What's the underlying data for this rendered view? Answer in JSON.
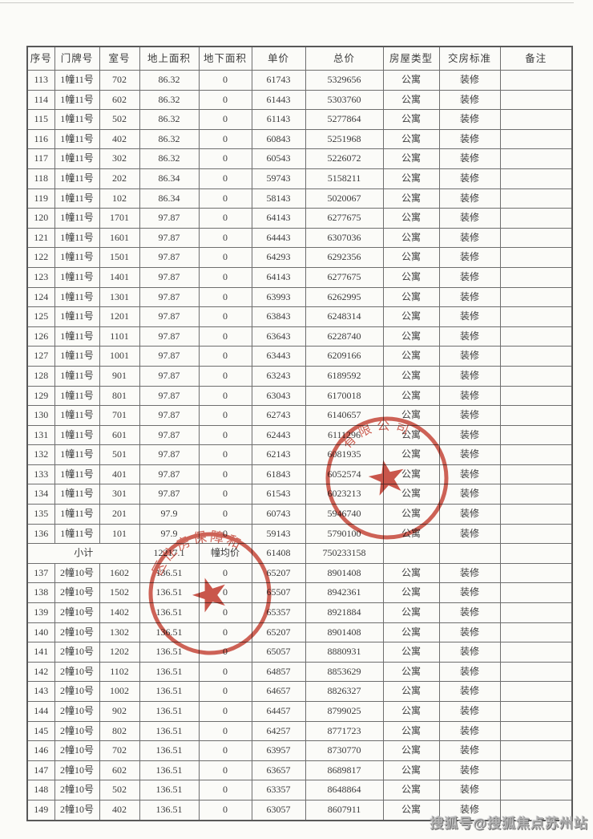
{
  "colors": {
    "paper": "#fbfbf8",
    "grid": "#6e6e6e",
    "text": "#3c3c3c",
    "stamp_red": "#c9473a",
    "watermark_gray": "#b3b3b3"
  },
  "table": {
    "columns": [
      "序号",
      "门牌号",
      "室号",
      "地上面积",
      "地下面积",
      "单价",
      "总价",
      "房屋类型",
      "交房标准",
      "备注"
    ],
    "rows": [
      [
        "113",
        "1幢11号",
        "702",
        "86.32",
        "0",
        "61743",
        "5329656",
        "公寓",
        "装修",
        ""
      ],
      [
        "114",
        "1幢11号",
        "602",
        "86.32",
        "0",
        "61443",
        "5303760",
        "公寓",
        "装修",
        ""
      ],
      [
        "115",
        "1幢11号",
        "502",
        "86.32",
        "0",
        "61143",
        "5277864",
        "公寓",
        "装修",
        ""
      ],
      [
        "116",
        "1幢11号",
        "402",
        "86.32",
        "0",
        "60843",
        "5251968",
        "公寓",
        "装修",
        ""
      ],
      [
        "117",
        "1幢11号",
        "302",
        "86.32",
        "0",
        "60543",
        "5226072",
        "公寓",
        "装修",
        ""
      ],
      [
        "118",
        "1幢11号",
        "202",
        "86.34",
        "0",
        "59743",
        "5158211",
        "公寓",
        "装修",
        ""
      ],
      [
        "119",
        "1幢11号",
        "102",
        "86.34",
        "0",
        "58143",
        "5020067",
        "公寓",
        "装修",
        ""
      ],
      [
        "120",
        "1幢11号",
        "1701",
        "97.87",
        "0",
        "64143",
        "6277675",
        "公寓",
        "装修",
        ""
      ],
      [
        "121",
        "1幢11号",
        "1601",
        "97.87",
        "0",
        "64443",
        "6307036",
        "公寓",
        "装修",
        ""
      ],
      [
        "122",
        "1幢11号",
        "1501",
        "97.87",
        "0",
        "64293",
        "6292356",
        "公寓",
        "装修",
        ""
      ],
      [
        "123",
        "1幢11号",
        "1401",
        "97.87",
        "0",
        "64143",
        "6277675",
        "公寓",
        "装修",
        ""
      ],
      [
        "124",
        "1幢11号",
        "1301",
        "97.87",
        "0",
        "63993",
        "6262995",
        "公寓",
        "装修",
        ""
      ],
      [
        "125",
        "1幢11号",
        "1201",
        "97.87",
        "0",
        "63843",
        "6248314",
        "公寓",
        "装修",
        ""
      ],
      [
        "126",
        "1幢11号",
        "1101",
        "97.87",
        "0",
        "63643",
        "6228740",
        "公寓",
        "装修",
        ""
      ],
      [
        "127",
        "1幢11号",
        "1001",
        "97.87",
        "0",
        "63443",
        "6209166",
        "公寓",
        "装修",
        ""
      ],
      [
        "128",
        "1幢11号",
        "901",
        "97.87",
        "0",
        "63243",
        "6189592",
        "公寓",
        "装修",
        ""
      ],
      [
        "129",
        "1幢11号",
        "801",
        "97.87",
        "0",
        "63043",
        "6170018",
        "公寓",
        "装修",
        ""
      ],
      [
        "130",
        "1幢11号",
        "701",
        "97.87",
        "0",
        "62743",
        "6140657",
        "公寓",
        "装修",
        ""
      ],
      [
        "131",
        "1幢11号",
        "601",
        "97.87",
        "0",
        "62443",
        "6111296",
        "公寓",
        "装修",
        ""
      ],
      [
        "132",
        "1幢11号",
        "501",
        "97.87",
        "0",
        "62143",
        "6081935",
        "公寓",
        "装修",
        ""
      ],
      [
        "133",
        "1幢11号",
        "401",
        "97.87",
        "0",
        "61843",
        "6052574",
        "公寓",
        "装修",
        ""
      ],
      [
        "134",
        "1幢11号",
        "301",
        "97.87",
        "0",
        "61543",
        "6023213",
        "公寓",
        "装修",
        ""
      ],
      [
        "135",
        "1幢11号",
        "201",
        "97.9",
        "0",
        "60743",
        "5946740",
        "公寓",
        "装修",
        ""
      ],
      [
        "136",
        "1幢11号",
        "101",
        "97.9",
        "0",
        "59143",
        "5790100",
        "公寓",
        "装修",
        ""
      ],
      {
        "subtotal": {
          "label": "小计",
          "area": "12217.1",
          "avg_label": "幢均价",
          "avg_price": "61408",
          "total": "750233158"
        }
      },
      [
        "137",
        "2幢10号",
        "1602",
        "136.51",
        "0",
        "65207",
        "8901408",
        "公寓",
        "装修",
        ""
      ],
      [
        "138",
        "2幢10号",
        "1502",
        "136.51",
        "0",
        "65507",
        "8942361",
        "公寓",
        "装修",
        ""
      ],
      [
        "139",
        "2幢10号",
        "1402",
        "136.51",
        "0",
        "65357",
        "8921884",
        "公寓",
        "装修",
        ""
      ],
      [
        "140",
        "2幢10号",
        "1302",
        "136.51",
        "0",
        "65207",
        "8901408",
        "公寓",
        "装修",
        ""
      ],
      [
        "141",
        "2幢10号",
        "1202",
        "136.51",
        "0",
        "65057",
        "8880931",
        "公寓",
        "装修",
        ""
      ],
      [
        "142",
        "2幢10号",
        "1102",
        "136.51",
        "0",
        "64857",
        "8853629",
        "公寓",
        "装修",
        ""
      ],
      [
        "143",
        "2幢10号",
        "1002",
        "136.51",
        "0",
        "64657",
        "8826327",
        "公寓",
        "装修",
        ""
      ],
      [
        "144",
        "2幢10号",
        "902",
        "136.51",
        "0",
        "64457",
        "8799025",
        "公寓",
        "装修",
        ""
      ],
      [
        "145",
        "2幢10号",
        "802",
        "136.51",
        "0",
        "64257",
        "8771723",
        "公寓",
        "装修",
        ""
      ],
      [
        "146",
        "2幢10号",
        "702",
        "136.51",
        "0",
        "63957",
        "8730770",
        "公寓",
        "装修",
        ""
      ],
      [
        "147",
        "2幢10号",
        "602",
        "136.51",
        "0",
        "63657",
        "8689817",
        "公寓",
        "装修",
        ""
      ],
      [
        "148",
        "2幢10号",
        "502",
        "136.51",
        "0",
        "63357",
        "8648864",
        "公寓",
        "装修",
        ""
      ],
      [
        "149",
        "2幢10号",
        "402",
        "136.51",
        "0",
        "63057",
        "8607911",
        "公寓",
        "装修",
        ""
      ]
    ]
  },
  "stamps": [
    {
      "arc_text": "有限公司",
      "star": "★"
    },
    {
      "arc_text": "区住房保障和",
      "star": "★"
    }
  ],
  "watermark": {
    "text": "搜狐号@搜狐焦点苏州站"
  }
}
